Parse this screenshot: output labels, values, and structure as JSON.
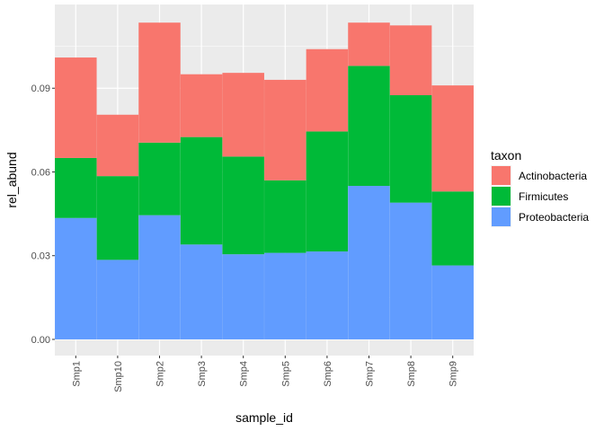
{
  "chart_data": {
    "type": "bar",
    "stacked": true,
    "categories": [
      "Smp1",
      "Smp10",
      "Smp2",
      "Smp3",
      "Smp4",
      "Smp5",
      "Smp6",
      "Smp7",
      "Smp8",
      "Smp9"
    ],
    "series": [
      {
        "name": "Proteobacteria",
        "color": "#619CFF",
        "values": [
          0.0435,
          0.0285,
          0.0445,
          0.034,
          0.0305,
          0.031,
          0.0315,
          0.055,
          0.049,
          0.0265
        ]
      },
      {
        "name": "Firmicutes",
        "color": "#00BA38",
        "values": [
          0.0215,
          0.03,
          0.026,
          0.0385,
          0.035,
          0.026,
          0.043,
          0.043,
          0.0385,
          0.0265
        ]
      },
      {
        "name": "Actinobacteria",
        "color": "#F8766D",
        "values": [
          0.036,
          0.022,
          0.043,
          0.0225,
          0.03,
          0.036,
          0.0295,
          0.0155,
          0.025,
          0.038
        ]
      }
    ],
    "xlabel": "sample_id",
    "ylabel": "rel_abund",
    "ylim": [
      -0.0058,
      0.12
    ],
    "yticks": [
      0.0,
      0.03,
      0.06,
      0.09
    ],
    "ytick_labels": [
      "0.00",
      "0.03",
      "0.06",
      "0.09"
    ],
    "legend": {
      "title": "taxon",
      "position": "right",
      "entries": [
        "Actinobacteria",
        "Firmicutes",
        "Proteobacteria"
      ]
    },
    "grid": true,
    "panel_background": "#EBEBEB",
    "grid_color": "#FFFFFF"
  }
}
